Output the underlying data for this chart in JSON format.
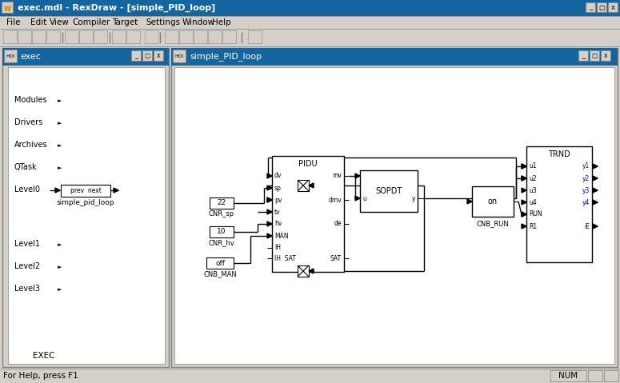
{
  "title_bar": "exec.mdl - RexDraw - [simple_PID_loop]",
  "title_bar_bg": "#1464a0",
  "bg": "#d4d0c8",
  "left_title": "exec",
  "right_title": "simple_PID_loop",
  "menu_items": [
    "File",
    "Edit",
    "View",
    "Compiler",
    "Target",
    "Settings",
    "Window",
    "Help"
  ],
  "menu_x": [
    8,
    38,
    62,
    90,
    140,
    182,
    228,
    265
  ],
  "status_left": "For Help, press F1",
  "status_right": "NUM",
  "left_items": [
    "Modules",
    "Drivers",
    "Archives",
    "QTask",
    "Level0",
    "Level1",
    "Level2",
    "Level3"
  ],
  "left_items_y": [
    120,
    148,
    176,
    204,
    232,
    300,
    328,
    356
  ],
  "pidu_ports_left": [
    "dv",
    "sp",
    "pv",
    "tv",
    "hv",
    "MAN",
    "IH  SAT"
  ],
  "pidu_ports_right": [
    "mv",
    "",
    "dmv",
    "",
    "de",
    ""
  ],
  "trnd_ports_left": [
    "u1",
    "u2",
    "u3",
    "u4",
    "RUN",
    "R1"
  ],
  "trnd_ports_right": [
    "y1",
    "y2",
    "y3",
    "y4",
    "iE"
  ]
}
